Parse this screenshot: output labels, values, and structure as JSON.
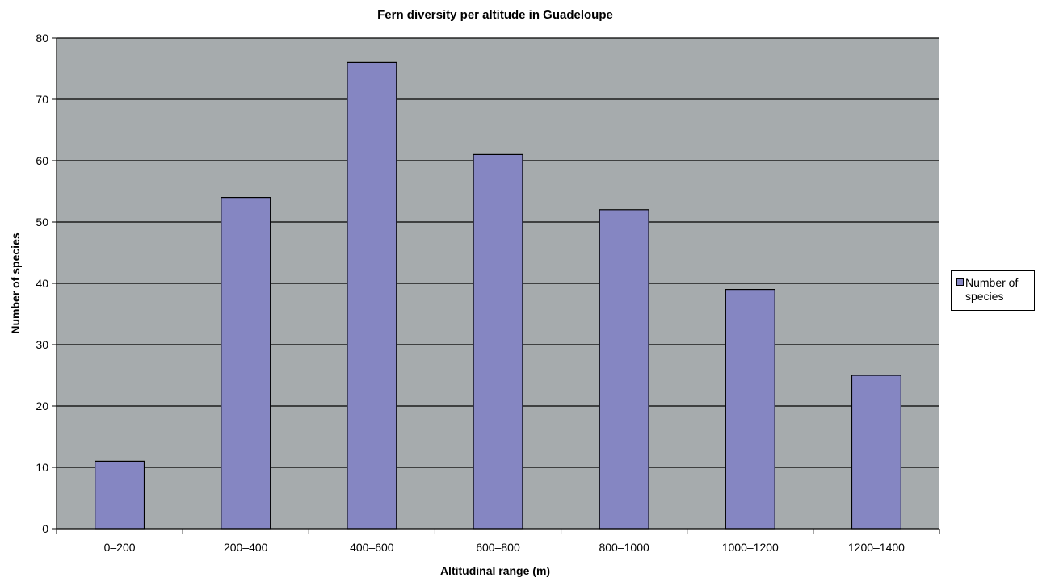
{
  "chart_data": {
    "type": "bar",
    "title": "Fern diversity per altitude in Guadeloupe",
    "xlabel": "Altitudinal range (m)",
    "ylabel": "Number of species",
    "categories": [
      "0–200",
      "200–400",
      "400–600",
      "600–800",
      "800–1000",
      "1000–1200",
      "1200–1400"
    ],
    "series": [
      {
        "name": "Number of species",
        "values": [
          11,
          54,
          76,
          61,
          52,
          39,
          25
        ]
      }
    ],
    "ylim": [
      0,
      80
    ],
    "yticks": [
      0,
      10,
      20,
      30,
      40,
      50,
      60,
      70,
      80
    ],
    "grid": true,
    "legend_position": "right",
    "colors": {
      "plot_background": "#a6abad",
      "bar_fill": "#8586c2",
      "bar_stroke": "#000000",
      "gridline": "#000000"
    }
  }
}
